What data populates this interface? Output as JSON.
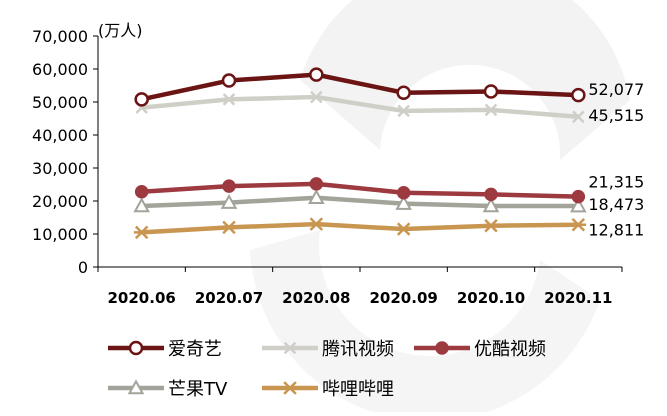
{
  "chart_data": {
    "type": "line",
    "title": "",
    "xlabel": "",
    "ylabel": "",
    "unit_label": "(万人)",
    "categories": [
      "2020.06",
      "2020.07",
      "2020.08",
      "2020.09",
      "2020.10",
      "2020.11"
    ],
    "ylim": [
      0,
      70000
    ],
    "yticks": [
      0,
      10000,
      20000,
      30000,
      40000,
      50000,
      60000,
      70000
    ],
    "ytick_labels": [
      "0",
      "10,000",
      "20,000",
      "30,000",
      "40,000",
      "50,000",
      "60,000",
      "70,000"
    ],
    "grid": false,
    "legend_position": "bottom",
    "series": [
      {
        "name": "爱奇艺",
        "color": "#6b1414",
        "marker": "circle-open",
        "values": [
          50800,
          56500,
          58300,
          52800,
          53200,
          52077
        ],
        "end_label": "52,077"
      },
      {
        "name": "腾讯视频",
        "color": "#cfcfc8",
        "marker": "x",
        "values": [
          48300,
          50800,
          51500,
          47300,
          47600,
          45515
        ],
        "end_label": "45,515"
      },
      {
        "name": "优酷视频",
        "color": "#9c3a40",
        "marker": "circle-filled",
        "values": [
          22800,
          24500,
          25200,
          22500,
          22000,
          21315
        ],
        "end_label": "21,315"
      },
      {
        "name": "芒果TV",
        "color": "#a3a39a",
        "marker": "triangle-open",
        "values": [
          18500,
          19500,
          21000,
          19200,
          18500,
          18473
        ],
        "end_label": "18,473"
      },
      {
        "name": "哔哩哔哩",
        "color": "#c89650",
        "marker": "asterisk",
        "values": [
          10500,
          12000,
          13000,
          11500,
          12500,
          12811
        ],
        "end_label": "12,811"
      }
    ]
  }
}
